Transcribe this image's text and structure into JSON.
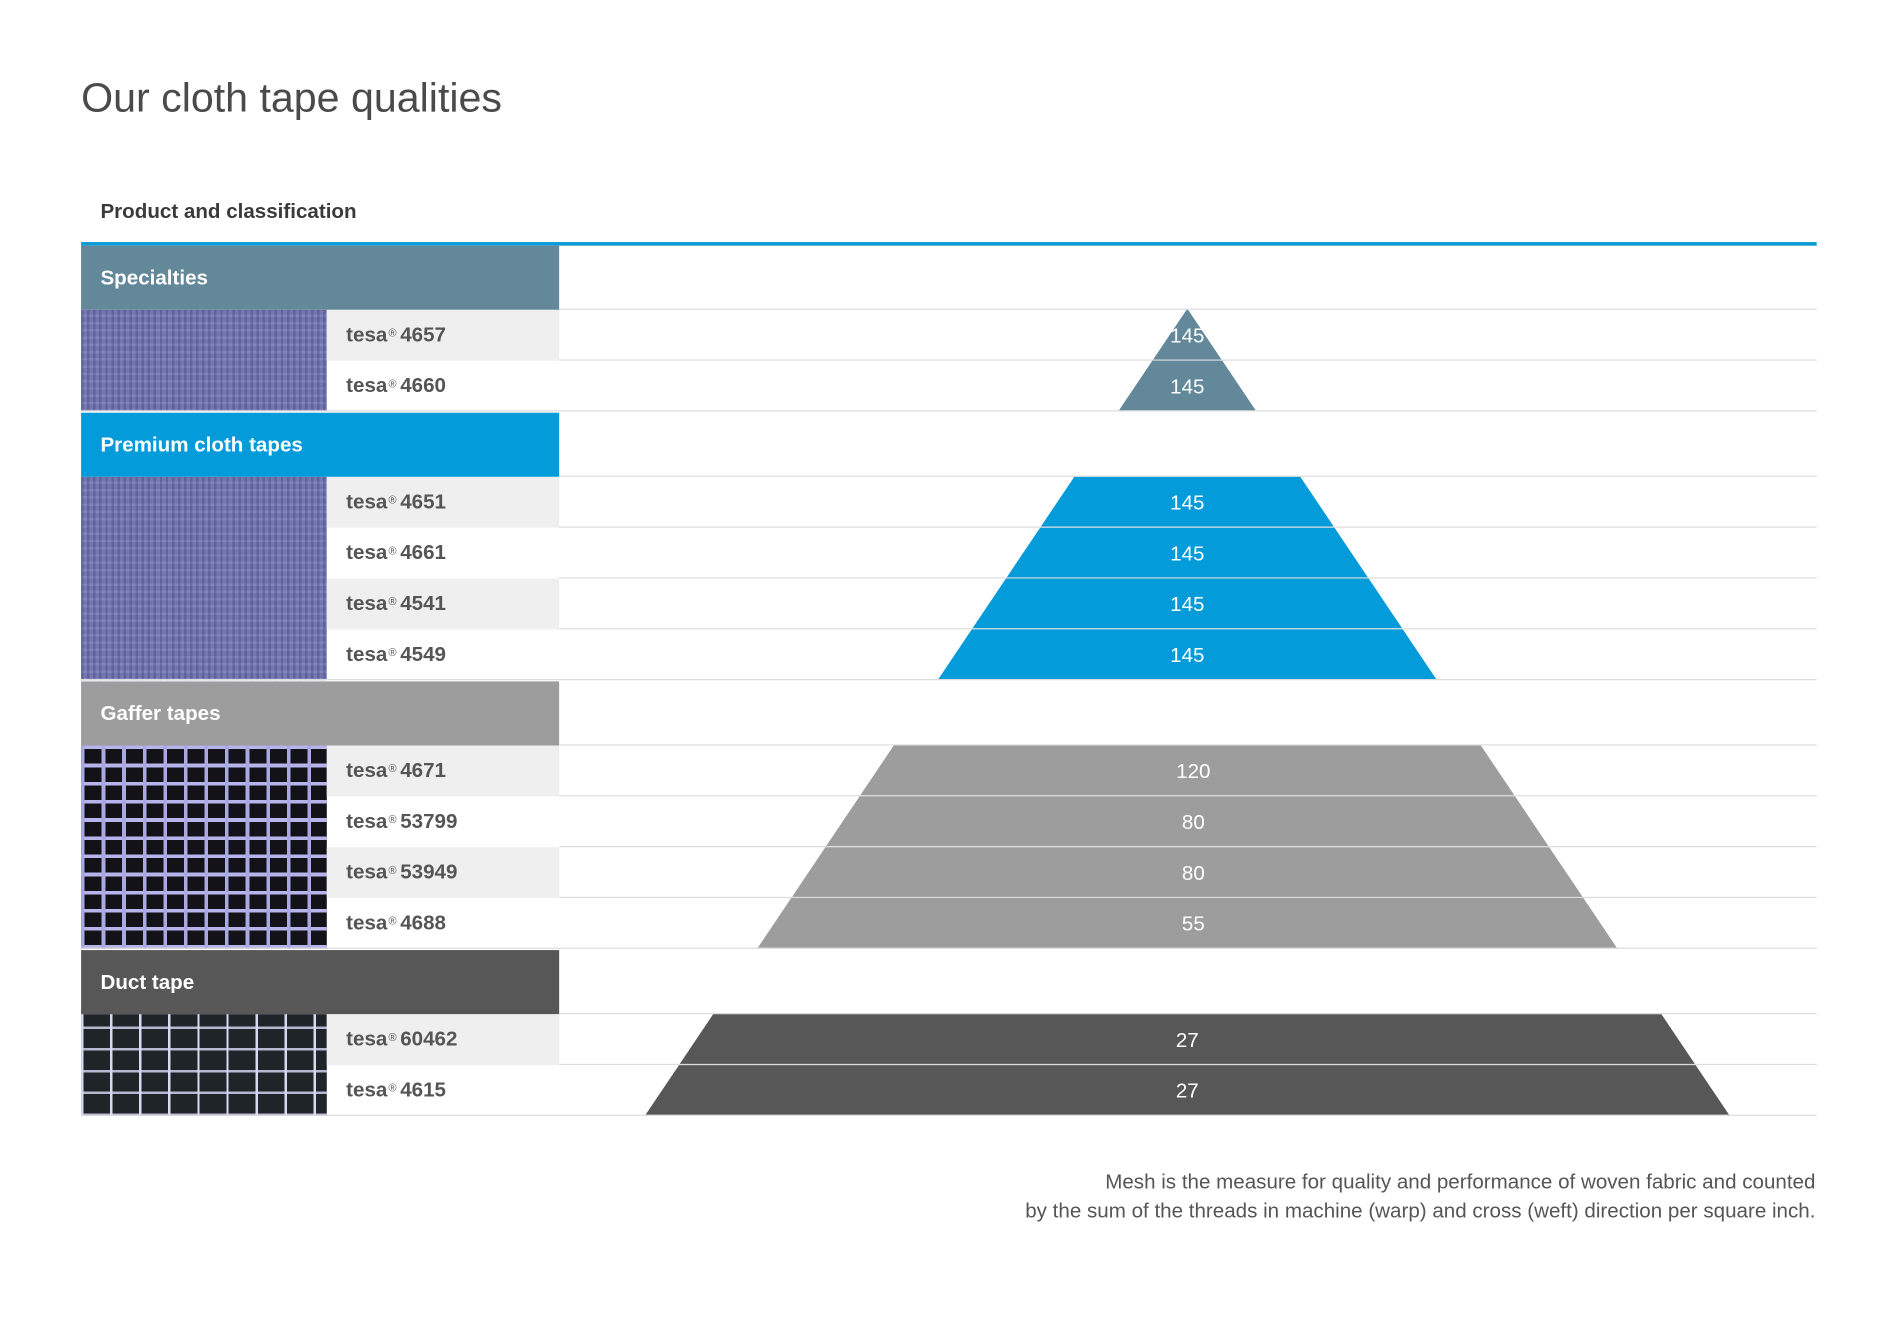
{
  "title": "Our cloth tape qualities",
  "subtitle": "Product and classification",
  "footnote": [
    "Mesh is the measure for quality and performance of woven fabric and counted",
    "by the sum of the threads in machine (warp) and cross (weft) direction per square inch."
  ],
  "colors": {
    "accent_line": "#0a9ad6",
    "Specialties": "#62889a",
    "Premium cloth tapes": "#039bd9",
    "Gaffer tapes": "#9d9d9d",
    "Duct tape": "#575757"
  },
  "chart_data": {
    "type": "pyramid",
    "value_label": "Mesh",
    "groups": [
      {
        "name": "Specialties",
        "color": "#62889a",
        "texture": "purple-fabric",
        "products": [
          {
            "brand": "tesa",
            "mark": "®",
            "code": "4657",
            "value": 145
          },
          {
            "brand": "tesa",
            "mark": "®",
            "code": "4660",
            "value": 145
          }
        ]
      },
      {
        "name": "Premium cloth tapes",
        "color": "#039bd9",
        "texture": "purple-fabric",
        "products": [
          {
            "brand": "tesa",
            "mark": "®",
            "code": "4651",
            "value": 145
          },
          {
            "brand": "tesa",
            "mark": "®",
            "code": "4661",
            "value": 145
          },
          {
            "brand": "tesa",
            "mark": "®",
            "code": "4541",
            "value": 145
          },
          {
            "brand": "tesa",
            "mark": "®",
            "code": "4549",
            "value": 145
          }
        ]
      },
      {
        "name": "Gaffer tapes",
        "color": "#9d9d9d",
        "texture": "open-grid",
        "products": [
          {
            "brand": "tesa",
            "mark": "®",
            "code": "4671",
            "value": 120
          },
          {
            "brand": "tesa",
            "mark": "®",
            "code": "53799",
            "value": 80
          },
          {
            "brand": "tesa",
            "mark": "®",
            "code": "53949",
            "value": 80
          },
          {
            "brand": "tesa",
            "mark": "®",
            "code": "4688",
            "value": 55
          }
        ]
      },
      {
        "name": "Duct tape",
        "color": "#575757",
        "texture": "duct-weave",
        "products": [
          {
            "brand": "tesa",
            "mark": "®",
            "code": "60462",
            "value": 27
          },
          {
            "brand": "tesa",
            "mark": "®",
            "code": "4615",
            "value": 27
          }
        ]
      }
    ]
  }
}
